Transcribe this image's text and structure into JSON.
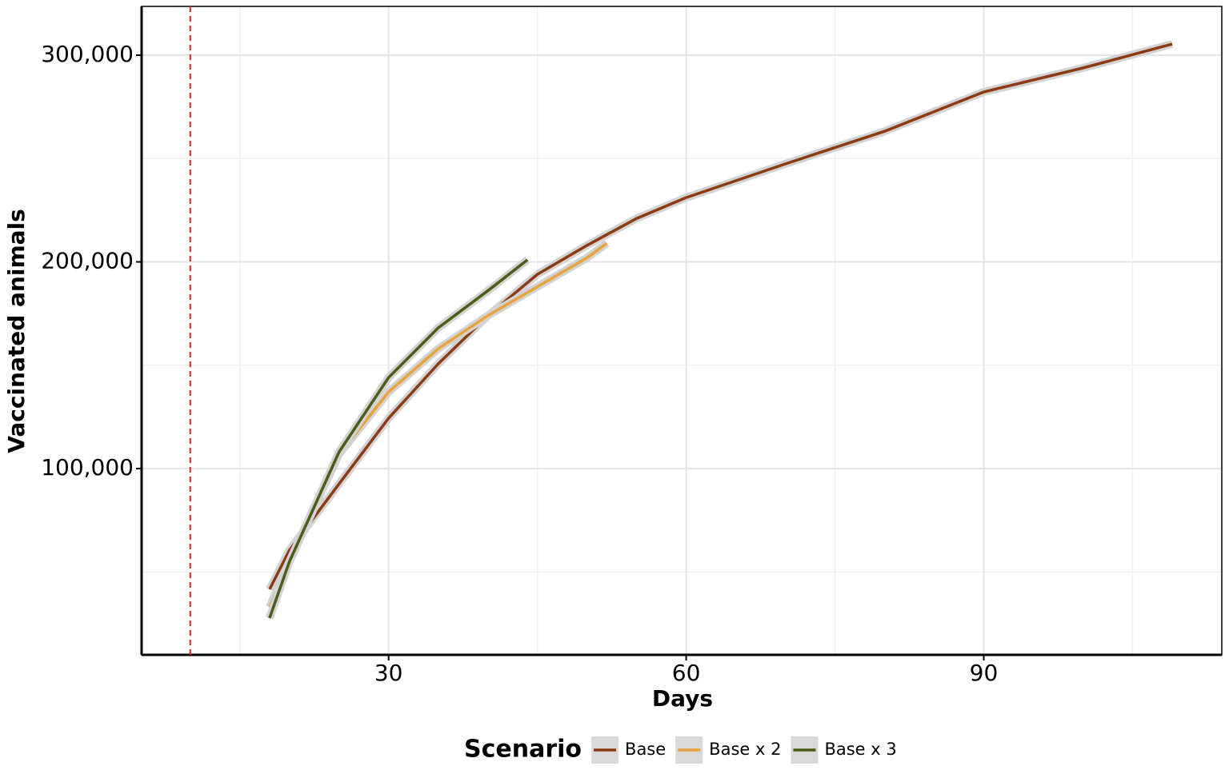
{
  "chart_data": {
    "type": "line",
    "x_label": "Days",
    "y_label": "Vaccinated animals",
    "legend_title": "Scenario",
    "legend_position": "bottom",
    "xlim": [
      5.1,
      114
    ],
    "ylim": [
      9900,
      323600
    ],
    "xticks": [
      30,
      60,
      90
    ],
    "yticks": [
      {
        "value": 100000,
        "label": "100,000"
      },
      {
        "value": 200000,
        "label": "200,000"
      },
      {
        "value": 300000,
        "label": "300,000"
      }
    ],
    "minor_xticks": [
      15,
      45,
      75,
      105
    ],
    "minor_yticks": [
      50000,
      150000,
      250000
    ],
    "grid": true,
    "vline": {
      "x": 10,
      "color": "#d62728"
    },
    "series": [
      {
        "name": "Base",
        "color": "#8b3a12",
        "x": [
          18,
          20,
          25,
          30,
          35,
          40,
          45,
          50,
          55,
          60,
          70,
          80,
          90,
          100,
          109
        ],
        "values": [
          41600,
          60500,
          92600,
          124400,
          150700,
          173900,
          194000,
          208000,
          221000,
          231100,
          247400,
          263200,
          282200,
          293800,
          305400
        ]
      },
      {
        "name": "Base x 2",
        "color": "#e8a33d",
        "x": [
          18,
          20,
          25,
          30,
          35,
          40,
          45,
          50,
          52
        ],
        "values": [
          33000,
          55000,
          107000,
          137100,
          158000,
          174000,
          188000,
          202000,
          209000
        ]
      },
      {
        "name": "Base x 3",
        "color": "#4a5e1a",
        "x": [
          18,
          20,
          25,
          30,
          35,
          40,
          44
        ],
        "values": [
          27700,
          55000,
          108000,
          144100,
          168100,
          186000,
          201000
        ]
      }
    ]
  }
}
